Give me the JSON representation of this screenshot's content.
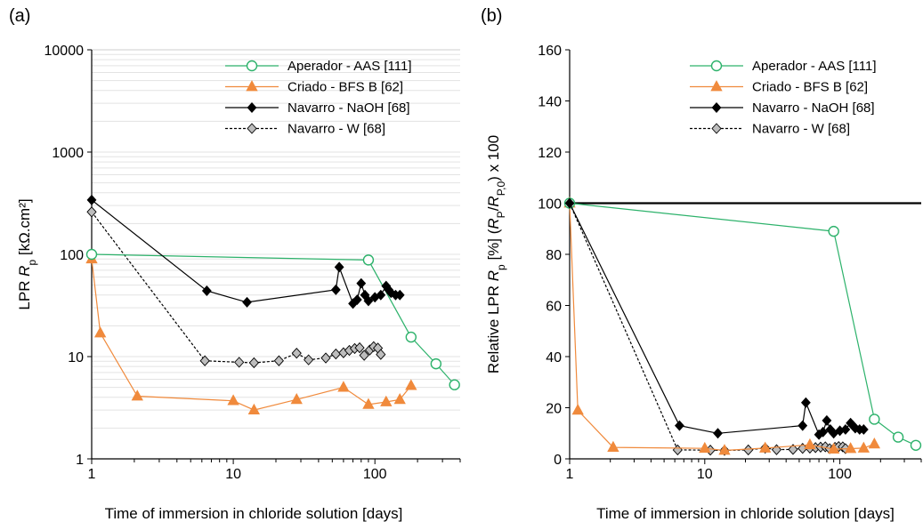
{
  "chart_data": [
    {
      "panel": "(a)",
      "type": "line",
      "xscale": "log",
      "yscale": "log",
      "xlim": [
        1,
        400
      ],
      "ylim": [
        1,
        10000
      ],
      "xticks": [
        "1",
        "10",
        "100"
      ],
      "yticks": [
        "1",
        "10",
        "100",
        "1000",
        "10000"
      ],
      "xlabel": "Time of immersion in chloride solution [days]",
      "ylabel": "LPR R_p [kΩ.cm²]",
      "grid": "horizontal minor",
      "legend_position": "top-right",
      "series": [
        {
          "name": "Aperador - AAS [111]",
          "color": "#2db26b",
          "marker": "open-circle",
          "dash": "solid",
          "x": [
            1,
            90,
            180,
            270,
            365
          ],
          "y": [
            100,
            88,
            15.5,
            8.5,
            5.3
          ]
        },
        {
          "name": "Criado - BFS B [62]",
          "color": "#f08a3c",
          "marker": "triangle",
          "dash": "solid",
          "x": [
            1,
            1.15,
            2.1,
            10,
            14,
            28,
            60,
            90,
            120,
            150,
            180
          ],
          "y": [
            90,
            17,
            4.1,
            3.7,
            3.0,
            3.8,
            5.0,
            3.4,
            3.6,
            3.8,
            5.2
          ]
        },
        {
          "name": "Navarro - NaOH [68]",
          "color": "#000000",
          "marker": "diamond",
          "dash": "solid",
          "x": [
            1,
            6.5,
            12.5,
            53,
            56,
            70,
            75,
            80,
            85,
            90,
            100,
            110,
            120,
            125,
            130,
            140,
            150
          ],
          "y": [
            340,
            44,
            34,
            45,
            75,
            33,
            36,
            52,
            40,
            35,
            38,
            40,
            49,
            45,
            42,
            40,
            40
          ]
        },
        {
          "name": "Navarro - W [68]",
          "color": "#000000",
          "fill": "#bdbdbd",
          "marker": "diamond",
          "dash": "dashed",
          "x": [
            1,
            6.3,
            11,
            14,
            21,
            28,
            34,
            45,
            53,
            60,
            66,
            72,
            78,
            84,
            92,
            98,
            105,
            110
          ],
          "y": [
            260,
            9.1,
            8.8,
            8.7,
            9.1,
            10.8,
            9.3,
            9.7,
            10.6,
            10.9,
            11.5,
            12.0,
            12.2,
            10.3,
            11.6,
            12.5,
            12.1,
            10.5
          ]
        }
      ]
    },
    {
      "panel": "(b)",
      "type": "line",
      "xscale": "log",
      "yscale": "linear",
      "xlim": [
        1,
        400
      ],
      "ylim": [
        0,
        160
      ],
      "xticks": [
        "1",
        "10",
        "100"
      ],
      "yticks": [
        "0",
        "20",
        "40",
        "60",
        "80",
        "100",
        "120",
        "140",
        "160"
      ],
      "xlabel": "Time of immersion in chloride solution [days]",
      "ylabel": "Relative LPR R_p [%] (R_P/R_P,0) x 100",
      "reference_line_y": 100,
      "legend_position": "top-right",
      "series": [
        {
          "name": "Aperador - AAS [111]",
          "color": "#2db26b",
          "marker": "open-circle",
          "dash": "solid",
          "x": [
            1,
            90,
            180,
            270,
            365
          ],
          "y": [
            100,
            89,
            15.5,
            8.5,
            5.3
          ]
        },
        {
          "name": "Criado - BFS B [62]",
          "color": "#f08a3c",
          "marker": "triangle",
          "dash": "solid",
          "x": [
            1,
            1.15,
            2.1,
            10,
            14,
            28,
            60,
            90,
            120,
            150,
            180
          ],
          "y": [
            100,
            19,
            4.5,
            4.1,
            3.3,
            4.2,
            5.5,
            3.8,
            4.0,
            4.2,
            5.8
          ]
        },
        {
          "name": "Navarro - NaOH [68]",
          "color": "#000000",
          "marker": "diamond",
          "dash": "solid",
          "x": [
            1,
            6.5,
            12.5,
            53,
            56,
            70,
            75,
            80,
            85,
            90,
            100,
            110,
            120,
            125,
            130,
            140,
            150
          ],
          "y": [
            100,
            13,
            10,
            13,
            22,
            9.5,
            10.5,
            15,
            11.5,
            10,
            11,
            11.5,
            14,
            13,
            12,
            11.5,
            11.5
          ]
        },
        {
          "name": "Navarro - W [68]",
          "color": "#000000",
          "fill": "#bdbdbd",
          "marker": "diamond",
          "dash": "dashed",
          "x": [
            1,
            6.3,
            11,
            14,
            21,
            28,
            34,
            45,
            53,
            60,
            66,
            72,
            78,
            84,
            92,
            98,
            105,
            110
          ],
          "y": [
            100,
            3.5,
            3.4,
            3.3,
            3.5,
            4.2,
            3.6,
            3.7,
            4.1,
            4.2,
            4.4,
            4.6,
            4.7,
            4.0,
            4.5,
            4.8,
            4.7,
            4.0
          ]
        }
      ]
    }
  ]
}
